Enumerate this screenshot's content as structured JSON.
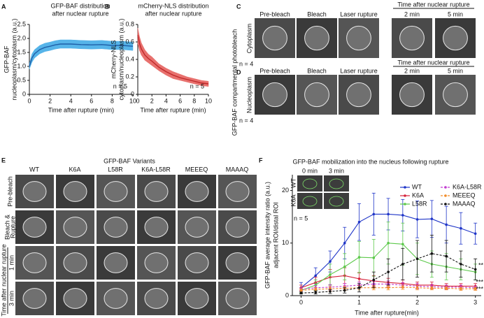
{
  "panel_labels": [
    "A",
    "B",
    "C",
    "D",
    "E",
    "F"
  ],
  "chart_data": [
    {
      "type": "line",
      "title": [
        "GFP-BAF distribution",
        "after nuclear rupture"
      ],
      "ylabel": [
        "GFP-BAF",
        "nucleoplasm/cytoplasm (a.u.)"
      ],
      "xlabel": "Time after rupture (min)",
      "x": [
        0,
        0.25,
        0.5,
        1,
        1.5,
        2,
        2.5,
        3,
        3.5,
        4,
        5,
        6,
        7,
        8,
        9,
        10
      ],
      "series": [
        {
          "color": "#1f5fa8",
          "band_color": "#56b4e9",
          "values": [
            1.0,
            1.3,
            1.45,
            1.6,
            1.68,
            1.72,
            1.77,
            1.8,
            1.8,
            1.8,
            1.78,
            1.77,
            1.78,
            1.75,
            1.75,
            1.72
          ],
          "lower": [
            0.9,
            1.15,
            1.3,
            1.45,
            1.53,
            1.57,
            1.62,
            1.65,
            1.65,
            1.65,
            1.63,
            1.62,
            1.63,
            1.6,
            1.6,
            1.57
          ],
          "upper": [
            1.1,
            1.45,
            1.6,
            1.75,
            1.83,
            1.87,
            1.92,
            1.95,
            1.95,
            1.95,
            1.93,
            1.92,
            1.93,
            1.9,
            1.9,
            1.87
          ]
        }
      ],
      "xlim": [
        0,
        10
      ],
      "xticks": [
        0,
        2,
        4,
        6,
        8,
        10
      ],
      "ylim": [
        0,
        2.5
      ],
      "yticks": [
        0,
        0.5,
        {
          "value": 1,
          "label": "1.0"
        },
        1.5,
        {
          "value": 2,
          "label": "2.0"
        },
        2.5
      ],
      "annotations": [
        "n = 5"
      ]
    },
    {
      "type": "line",
      "title": [
        "mCherry-NLS distribution",
        "after nuclear rupture"
      ],
      "ylabel": [
        "mCherry-NLS",
        "cytoplasm/nucleoplasm (a.u.)"
      ],
      "xlabel": "Time after rupture (min)",
      "x": [
        0,
        0.25,
        0.5,
        1,
        1.5,
        2,
        3,
        4,
        5,
        6,
        7,
        8,
        9,
        10
      ],
      "series": [
        {
          "color": "#c0282a",
          "band_color": "#e8716e",
          "values": [
            0.68,
            0.58,
            0.52,
            0.45,
            0.41,
            0.38,
            0.31,
            0.26,
            0.22,
            0.19,
            0.17,
            0.15,
            0.13,
            0.12
          ],
          "lower": [
            0.58,
            0.5,
            0.45,
            0.39,
            0.36,
            0.33,
            0.27,
            0.22,
            0.18,
            0.16,
            0.14,
            0.12,
            0.1,
            0.09
          ],
          "upper": [
            0.76,
            0.66,
            0.59,
            0.51,
            0.46,
            0.43,
            0.35,
            0.3,
            0.26,
            0.23,
            0.2,
            0.18,
            0.16,
            0.15
          ]
        }
      ],
      "xlim": [
        0,
        10
      ],
      "xticks": [
        0,
        2,
        4,
        6,
        8,
        10
      ],
      "ylim": [
        0,
        0.8
      ],
      "yticks": [
        0,
        0.2,
        0.4,
        0.6,
        0.8
      ],
      "annotations": [
        "n = 5"
      ]
    },
    {
      "type": "line",
      "title": [
        "GFP-BAF mobilization into the nucleus following rupture"
      ],
      "ylabel": [
        "GFP-BAF average intensity ratio (a.u.)",
        "adjacent ROI/distal ROI"
      ],
      "xlabel": "Time after rupture(min)",
      "x": [
        0,
        0.25,
        0.5,
        0.75,
        1,
        1.25,
        1.5,
        1.75,
        2,
        2.25,
        2.5,
        2.75,
        3
      ],
      "series": [
        {
          "name": "WT",
          "color": "#1f35c8",
          "linestyle": "solid",
          "values": [
            1.5,
            3.8,
            6.5,
            10,
            14,
            15.5,
            15.5,
            15.3,
            14.5,
            14.6,
            13.5,
            12.8,
            11.8
          ],
          "errors": [
            1,
            1.5,
            2,
            3,
            3.5,
            4,
            3,
            3,
            3.5,
            3.5,
            3.5,
            3,
            2
          ]
        },
        {
          "name": "K6A",
          "color": "#d6223a",
          "linestyle": "solid",
          "values": [
            1.5,
            2.5,
            3.5,
            3.8,
            3.2,
            2.8,
            2.5,
            2.3,
            2.0,
            2.0,
            1.8,
            1.8,
            1.8
          ],
          "errors": [
            0.5,
            1,
            1.5,
            1.5,
            1.2,
            1,
            0.8,
            0.7,
            0.6,
            0.6,
            0.5,
            0.5,
            0.5
          ]
        },
        {
          "name": "L58R",
          "color": "#5cc94a",
          "linestyle": "solid",
          "values": [
            1,
            2,
            4,
            5.5,
            7.3,
            7.2,
            10,
            9.8,
            7,
            6,
            5.5,
            5,
            4.5
          ],
          "errors": [
            0.5,
            1,
            2,
            2.5,
            3,
            3.5,
            4,
            4,
            3,
            2.5,
            2.5,
            2,
            1.5
          ]
        },
        {
          "name": "K6A-L58R",
          "color": "#c23bd0",
          "linestyle": "dashed",
          "values": [
            1.2,
            1.5,
            1.6,
            1.8,
            2,
            2.2,
            2.2,
            2,
            1.8,
            1.7,
            1.6,
            1.6,
            1.5
          ],
          "errors": [
            0.3,
            0.4,
            0.5,
            0.5,
            0.6,
            0.6,
            0.6,
            0.5,
            0.5,
            0.4,
            0.4,
            0.4,
            0.3
          ]
        },
        {
          "name": "MEEEQ",
          "color": "#f28c28",
          "linestyle": "dashed",
          "values": [
            1,
            1.2,
            1.3,
            1.4,
            1.5,
            1.5,
            1.5,
            1.6,
            1.5,
            1.4,
            1.4,
            1.3,
            1.3
          ],
          "errors": [
            0.3,
            0.3,
            0.4,
            0.4,
            0.4,
            0.4,
            0.4,
            0.4,
            0.4,
            0.3,
            0.3,
            0.3,
            0.3
          ]
        },
        {
          "name": "MAAAQ",
          "color": "#111111",
          "linestyle": "dashed",
          "values": [
            0.5,
            0.6,
            0.8,
            1,
            1.5,
            3,
            4.5,
            6,
            7,
            8,
            7.5,
            6,
            5
          ],
          "errors": [
            0.2,
            0.3,
            0.4,
            0.5,
            0.8,
            1.5,
            2.5,
            3,
            3.5,
            3.5,
            3,
            2.5,
            2
          ]
        }
      ],
      "markers": true,
      "xlim": [
        -0.15,
        3.1
      ],
      "xticks": [
        0,
        1,
        2,
        3
      ],
      "ylim": [
        0,
        23
      ],
      "yticks": [
        0,
        10,
        20
      ],
      "legend": "upper right",
      "inset_labels": [
        "0 min",
        "3 min",
        "WT",
        "K6A"
      ],
      "annotations": [
        "n = 5",
        "**",
        "***",
        "***"
      ]
    }
  ],
  "panel_cd": {
    "side_title": "GFP-BAF compartmental photobleach",
    "columns": [
      "Pre-bleach",
      "Bleach",
      "Laser rupture",
      "2 min",
      "5 min"
    ],
    "group_label": "Time after nuclear rupture",
    "rows": [
      "Cytoplasm",
      "Nucleoplasm"
    ],
    "n": "n = 4"
  },
  "panel_e": {
    "title": "GFP-BAF Variants",
    "columns": [
      "WT",
      "K6A",
      "L58R",
      "K6A-L58R",
      "MEEEQ",
      "MAAAQ"
    ],
    "rows": [
      "Pre-bleach",
      "Bleach &",
      "Rupture",
      "1 min",
      "3 min"
    ],
    "group_label": "Time after nuclear rupture"
  }
}
